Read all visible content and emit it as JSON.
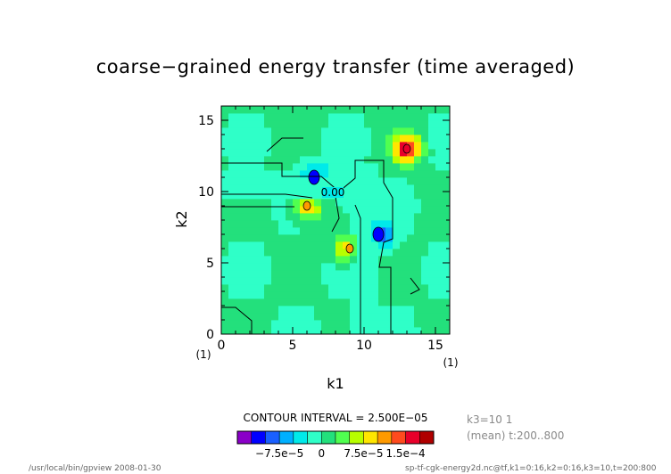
{
  "chart_data": {
    "type": "heatmap",
    "title": "coarse−grained energy transfer (time averaged)",
    "xlabel": "k1",
    "ylabel": "k2",
    "xlim": [
      0,
      16
    ],
    "ylim": [
      0,
      16
    ],
    "x_ticks": [
      "0",
      "5",
      "10",
      "15"
    ],
    "y_ticks": [
      "0",
      "5",
      "10",
      "15"
    ],
    "x_unit": "(1)",
    "y_unit": "(1)",
    "contour_label": "0.00",
    "contour_interval_text": "CONTOUR INTERVAL = 2.500E−05",
    "colorbar": {
      "tick_labels": [
        "−7.5e−5",
        "0",
        "7.5e−5",
        "1.5e−4"
      ],
      "tick_values": [
        -7.5e-05,
        0,
        7.5e-05,
        0.00015
      ],
      "levels": [
        -0.000125,
        -0.0001,
        -7.5e-05,
        -5e-05,
        -2.5e-05,
        0,
        2.5e-05,
        5e-05,
        7.5e-05,
        0.0001,
        0.000125,
        0.00015,
        0.000175
      ],
      "colors": [
        "#8a00c8",
        "#0000ff",
        "#1a60ff",
        "#00b0ff",
        "#00eaea",
        "#2fffc8",
        "#23e07c",
        "#50ff50",
        "#b8ff00",
        "#ffe600",
        "#ff9a00",
        "#ff4b1e",
        "#e8002a",
        "#b00000"
      ]
    },
    "features": [
      {
        "kind": "min",
        "k1": 6.5,
        "k2": 11,
        "value": -0.000125
      },
      {
        "kind": "min",
        "k1": 11,
        "k2": 7,
        "value": -0.000125
      },
      {
        "kind": "max",
        "k1": 13,
        "k2": 13,
        "value": 0.00016
      },
      {
        "kind": "max",
        "k1": 9,
        "k2": 6,
        "value": 0.00012
      },
      {
        "kind": "max",
        "k1": 6,
        "k2": 9,
        "value": 0.00011
      }
    ]
  },
  "info": {
    "k3": "k3=10 1",
    "mean": "(mean) t:200..800"
  },
  "footer": {
    "left": "/usr/local/bin/gpview  2008-01-30",
    "right": "sp-tf-cgk-energy2d.nc@tf,k1=0:16,k2=0:16,k3=10,t=200:800"
  }
}
